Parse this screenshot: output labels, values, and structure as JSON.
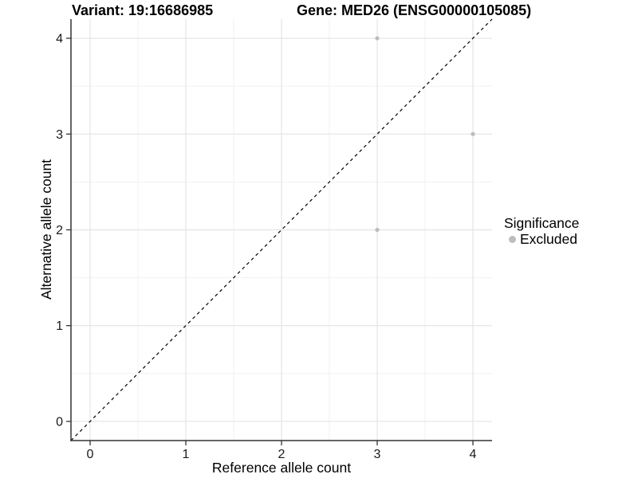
{
  "chart_data": {
    "type": "scatter",
    "titles": {
      "left": "Variant: 19:16686985",
      "right": "Gene: MED26 (ENSG00000105085)"
    },
    "xlabel": "Reference allele count",
    "ylabel": "Alternative allele count",
    "xlim": [
      -0.2,
      4.2
    ],
    "ylim": [
      -0.2,
      4.2
    ],
    "x_ticks": [
      0,
      1,
      2,
      3,
      4
    ],
    "y_ticks": [
      0,
      1,
      2,
      3,
      4
    ],
    "x_minor": [
      0.5,
      1.5,
      2.5,
      3.5
    ],
    "y_minor": [
      0.5,
      1.5,
      2.5,
      3.5
    ],
    "grid": true,
    "series": [
      {
        "name": "Excluded",
        "color": "#bdbdbd",
        "points": [
          [
            3,
            4
          ],
          [
            4,
            3
          ],
          [
            3,
            2
          ]
        ]
      }
    ],
    "reference_line": {
      "type": "identity",
      "style": "dashed",
      "color": "#000000"
    },
    "legend": {
      "title": "Significance",
      "position": "right",
      "entries": [
        {
          "label": "Excluded",
          "color": "#bdbdbd"
        }
      ]
    },
    "colors": {
      "background": "#ffffff",
      "grid_major": "#e4e4e4",
      "grid_minor": "#f1f1f1",
      "axis_line": "#333333",
      "tick_text": "#1a1a1a",
      "point": "#bdbdbd"
    }
  }
}
